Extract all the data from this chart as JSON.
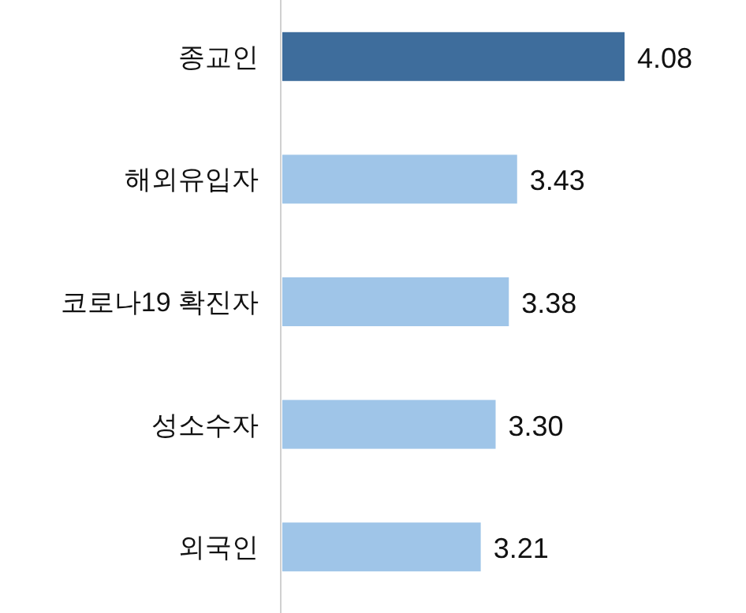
{
  "chart_data": {
    "type": "bar",
    "orientation": "horizontal",
    "categories": [
      "종교인",
      "해외유입자",
      "코로나19 확진자",
      "성소수자",
      "외국인"
    ],
    "values": [
      4.08,
      3.43,
      3.38,
      3.3,
      3.21
    ],
    "value_labels": [
      "4.08",
      "3.43",
      "3.38",
      "3.30",
      "3.21"
    ],
    "colors": [
      "#3e6d9c",
      "#9fc5e8",
      "#9fc5e8",
      "#9fc5e8",
      "#9fc5e8"
    ],
    "xlim": [
      2,
      4.08
    ]
  }
}
